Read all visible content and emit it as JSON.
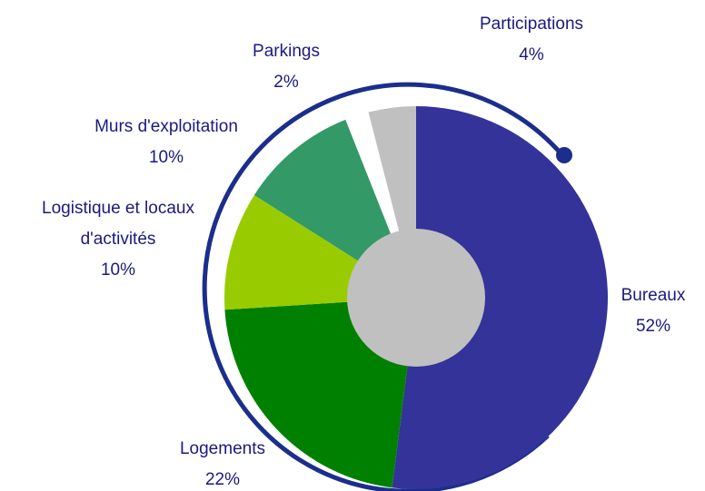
{
  "chart_data": {
    "type": "pie",
    "categories": [
      "Bureaux",
      "Logements",
      "Logistique et locaux d'activités",
      "Murs d'exploitation",
      "Parkings",
      "Participations"
    ],
    "values": [
      52,
      22,
      10,
      10,
      2,
      4
    ],
    "value_labels": [
      "52%",
      "22%",
      "10%",
      "10%",
      "2%",
      "4%"
    ],
    "colors": [
      "#333399",
      "#008000",
      "#99cc00",
      "#339966",
      "#ffffff",
      "#c0c0c0"
    ],
    "hole_color": "#c0c0c0"
  }
}
